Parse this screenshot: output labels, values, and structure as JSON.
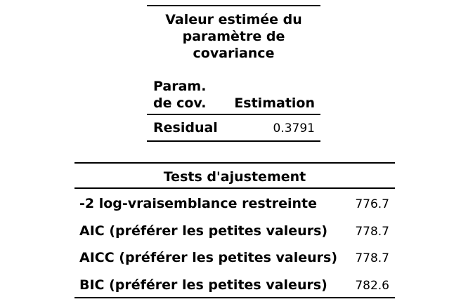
{
  "covariance_table": {
    "title_lines": [
      "Valeur estimée du",
      "paramètre de",
      "covariance"
    ],
    "header": {
      "col1_lines": [
        "Param.",
        "de cov."
      ],
      "col2": "Estimation"
    },
    "rows": [
      {
        "param": "Residual",
        "estimate": "0.3791"
      }
    ]
  },
  "fit_table": {
    "title": "Tests d'ajustement",
    "rows": [
      {
        "label": "-2 log-vraisemblance restreinte",
        "value": "776.7"
      },
      {
        "label": "AIC (préférer les petites valeurs)",
        "value": "778.7"
      },
      {
        "label": "AICC (préférer les petites valeurs)",
        "value": "778.7"
      },
      {
        "label": "BIC (préférer les petites valeurs)",
        "value": "782.6"
      }
    ]
  }
}
